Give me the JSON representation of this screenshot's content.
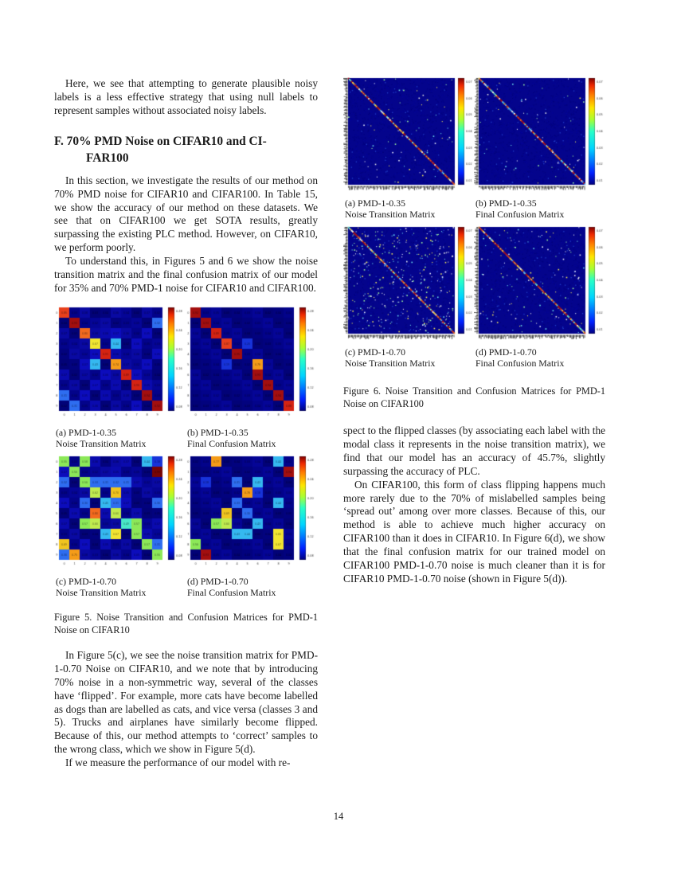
{
  "page": {
    "number": "14"
  },
  "left_column": {
    "p1": "Here, we see that attempting to generate plausible noisy labels is a less effective strategy that using null labels to represent samples without associated noisy labels.",
    "heading": {
      "line1": "F. 70% PMD Noise on CIFAR10 and CI-",
      "line2": "FAR100"
    },
    "p2": "In this section, we investigate the results of our method on 70% PMD noise for CIFAR10 and CIFAR100. In Table 15, we show the accuracy of our method on these datasets. We see that on CIFAR100 we get SOTA results, greatly surpassing the existing PLC method. However, on CIFAR10, we perform poorly.",
    "p3": "To understand this, in Figures 5 and 6 we show the noise transition matrix and the final confusion matrix of our model for 35% and 70% PMD-1 noise for CIFAR10 and CIFAR100.",
    "p4": "In Figure 5(c), we see the noise transition matrix for PMD-1-0.70 Noise on CIFAR10, and we note that by introducing 70% noise in a non-symmetric way, several of the classes have ‘flipped’. For example, more cats have become labelled as dogs than are labelled as cats, and vice versa (classes 3 and 5). Trucks and airplanes have similarly become flipped. Because of this, our method attempts to ‘correct’ samples to the wrong class, which we show in Figure 5(d).",
    "p5": "If we measure the performance of our model with re-"
  },
  "right_column": {
    "p1": "spect to the flipped classes (by associating each label with the modal class it represents in the noise transition matrix), we find that our model has an accuracy of 45.7%, slightly surpassing the accuracy of PLC.",
    "p2": "On CIFAR100, this form of class flipping happens much more rarely due to the 70% of mislabelled samples being ‘spread out’ among over more classes. Because of this, our method is able to achieve much higher accuracy on CIFAR100 than it does in CIFAR10. In Figure 6(d), we show that the final confusion matrix for our trained model on CIFAR100 PMD-1-0.70 noise is much cleaner than it is for CIFAR10 PMD-1-0.70 noise (shown in Figure 5(d))."
  },
  "figures": {
    "fig5": {
      "caption": "Figure 5. Noise Transition and Confusion Matrices for PMD-1 Noise on CIFAR10",
      "colorbar_ticks": [
        "0.28",
        "0.24",
        "0.20",
        "0.16",
        "0.12",
        "0.08"
      ],
      "subfigs": [
        {
          "label": "(a) PMD-1-0.35",
          "sublabel": "Noise Transition Matrix",
          "type": "cifar10",
          "chart": 0,
          "seed": 11
        },
        {
          "label": "(b) PMD-1-0.35",
          "sublabel": "Final Confusion Matrix",
          "type": "cifar10",
          "chart": 1,
          "seed": 12
        },
        {
          "label": "(c) PMD-1-0.70",
          "sublabel": "Noise Transition Matrix",
          "type": "cifar10",
          "chart": 2,
          "seed": 13
        },
        {
          "label": "(d) PMD-1-0.70",
          "sublabel": "Final Confusion Matrix",
          "type": "cifar10",
          "chart": 3,
          "seed": 14
        }
      ]
    },
    "fig6": {
      "caption": "Figure 6. Noise Transition and Confusion Matrices for PMD-1 Noise on CIFAR100",
      "colorbar_ticks": [
        "0.07",
        "0.06",
        "0.05",
        "0.04",
        "0.03",
        "0.02",
        "0.01"
      ],
      "subfigs": [
        {
          "label": "(a) PMD-1-0.35",
          "sublabel": "Noise Transition Matrix",
          "type": "cifar100",
          "chart": 4,
          "seed": 21,
          "speckles": 70,
          "dim_speckles": 55
        },
        {
          "label": "(b) PMD-1-0.35",
          "sublabel": "Final Confusion Matrix",
          "type": "cifar100",
          "chart": 5,
          "seed": 22,
          "speckles": 60,
          "dim_speckles": 65
        },
        {
          "label": "(c) PMD-1-0.70",
          "sublabel": "Noise Transition Matrix",
          "type": "cifar100",
          "chart": 6,
          "seed": 23,
          "speckles": 330,
          "dim_speckles": 120
        },
        {
          "label": "(d) PMD-1-0.70",
          "sublabel": "Final Confusion Matrix",
          "type": "cifar100",
          "chart": 7,
          "seed": 24,
          "speckles": 120,
          "dim_speckles": 85
        }
      ]
    }
  },
  "palette": {
    "0": "#03038a",
    "1": "#0b0bb2",
    "2": "#1733d9",
    "3": "#2e6df0",
    "C": "#35b8f0",
    "c": "#49e8c8",
    "G": "#8ce858",
    "g": "#c0ea4f",
    "Y": "#f2e531",
    "y": "#f0c41f",
    "O": "#f59c19",
    "o": "#f26a1e",
    "R": "#e8401c",
    "r": "#d42312",
    "D": "#a30f0f",
    "M": "#780404"
  },
  "chart_data": [
    {
      "id": "fig5a",
      "type": "heatmap",
      "title": "PMD-1-0.35 Noise Transition Matrix (CIFAR10)",
      "x_categories": [
        "0",
        "1",
        "2",
        "3",
        "4",
        "5",
        "6",
        "7",
        "8",
        "9"
      ],
      "y_categories": [
        "0",
        "1",
        "2",
        "3",
        "4",
        "5",
        "6",
        "7",
        "8",
        "9"
      ],
      "colormap": "jet",
      "cell_color_codes": [
        "R010010010",
        "0D00100003",
        "10o1111010",
        "001Y0C0100",
        "0101r10101",
        "001C0O1010",
        "101011r100",
        "0101010r10",
        "30101010D0",
        "030101010D"
      ]
    },
    {
      "id": "fig5b",
      "type": "heatmap",
      "title": "PMD-1-0.35 Final Confusion Matrix (CIFAR10)",
      "x_categories": [
        "0",
        "1",
        "2",
        "3",
        "4",
        "5",
        "6",
        "7",
        "8",
        "9"
      ],
      "y_categories": [
        "0",
        "1",
        "2",
        "3",
        "4",
        "5",
        "6",
        "7",
        "8",
        "9"
      ],
      "colormap": "jet",
      "cell_color_codes": [
        "D000000000",
        "0D00000000",
        "00r0000000",
        "000R020000",
        "0000D00000",
        "000200O000",
        "000000D000",
        "0000000D00",
        "00000000D0",
        "000000000r"
      ]
    },
    {
      "id": "fig5c",
      "type": "heatmap",
      "title": "PMD-1-0.70 Noise Transition Matrix (CIFAR10)",
      "x_categories": [
        "0",
        "1",
        "2",
        "3",
        "4",
        "5",
        "6",
        "7",
        "8",
        "9"
      ],
      "y_categories": [
        "0",
        "1",
        "2",
        "3",
        "4",
        "5",
        "6",
        "7",
        "8",
        "9"
      ],
      "colormap": "jet",
      "cell_color_codes": [
        "G0G10110C2",
        "1G0011000M",
        "30G3333101",
        "001g0y1010",
        "1030C31003",
        "010o1g0100",
        "10Gg01cG01",
        "0100CY0G10",
        "y0101010G3",
        "3O1001010G"
      ]
    },
    {
      "id": "fig5d",
      "type": "heatmap",
      "title": "PMD-1-0.70 Final Confusion Matrix (CIFAR10)",
      "x_categories": [
        "0",
        "1",
        "2",
        "3",
        "4",
        "5",
        "6",
        "7",
        "8",
        "9"
      ],
      "y_categories": [
        "0",
        "1",
        "2",
        "3",
        "4",
        "5",
        "6",
        "7",
        "8",
        "9"
      ],
      "colormap": "jet",
      "cell_color_codes": [
        "00O00000C0",
        "000000000D",
        "020030C000",
        "00000O2000",
        "00003000C0",
        "000y030000",
        "00Gg00C000",
        "0000CC00Y0",
        "G0000000Y0",
        "0D00000000"
      ]
    },
    {
      "id": "fig6a",
      "type": "heatmap",
      "title": "PMD-1-0.35 Noise Transition Matrix (CIFAR100)",
      "size": 100,
      "colormap": "jet",
      "pattern": "dark blue field, jet-colored main diagonal, sparse dim speckles, dense tiny class-name tick labels"
    },
    {
      "id": "fig6b",
      "type": "heatmap",
      "title": "PMD-1-0.35 Final Confusion Matrix (CIFAR100)",
      "size": 100,
      "colormap": "jet",
      "pattern": "dark blue field, jet-colored main diagonal with cyan segments, sparse dim speckles"
    },
    {
      "id": "fig6c",
      "type": "heatmap",
      "title": "PMD-1-0.70 Noise Transition Matrix (CIFAR100)",
      "size": 100,
      "colormap": "jet",
      "pattern": "dark blue field, jet-colored main diagonal, many scattered bright speckles"
    },
    {
      "id": "fig6d",
      "type": "heatmap",
      "title": "PMD-1-0.70 Final Confusion Matrix (CIFAR100)",
      "size": 100,
      "colormap": "jet",
      "pattern": "dark blue field, jet-colored main diagonal, few scattered speckles (cleaner than fig6c)"
    }
  ]
}
